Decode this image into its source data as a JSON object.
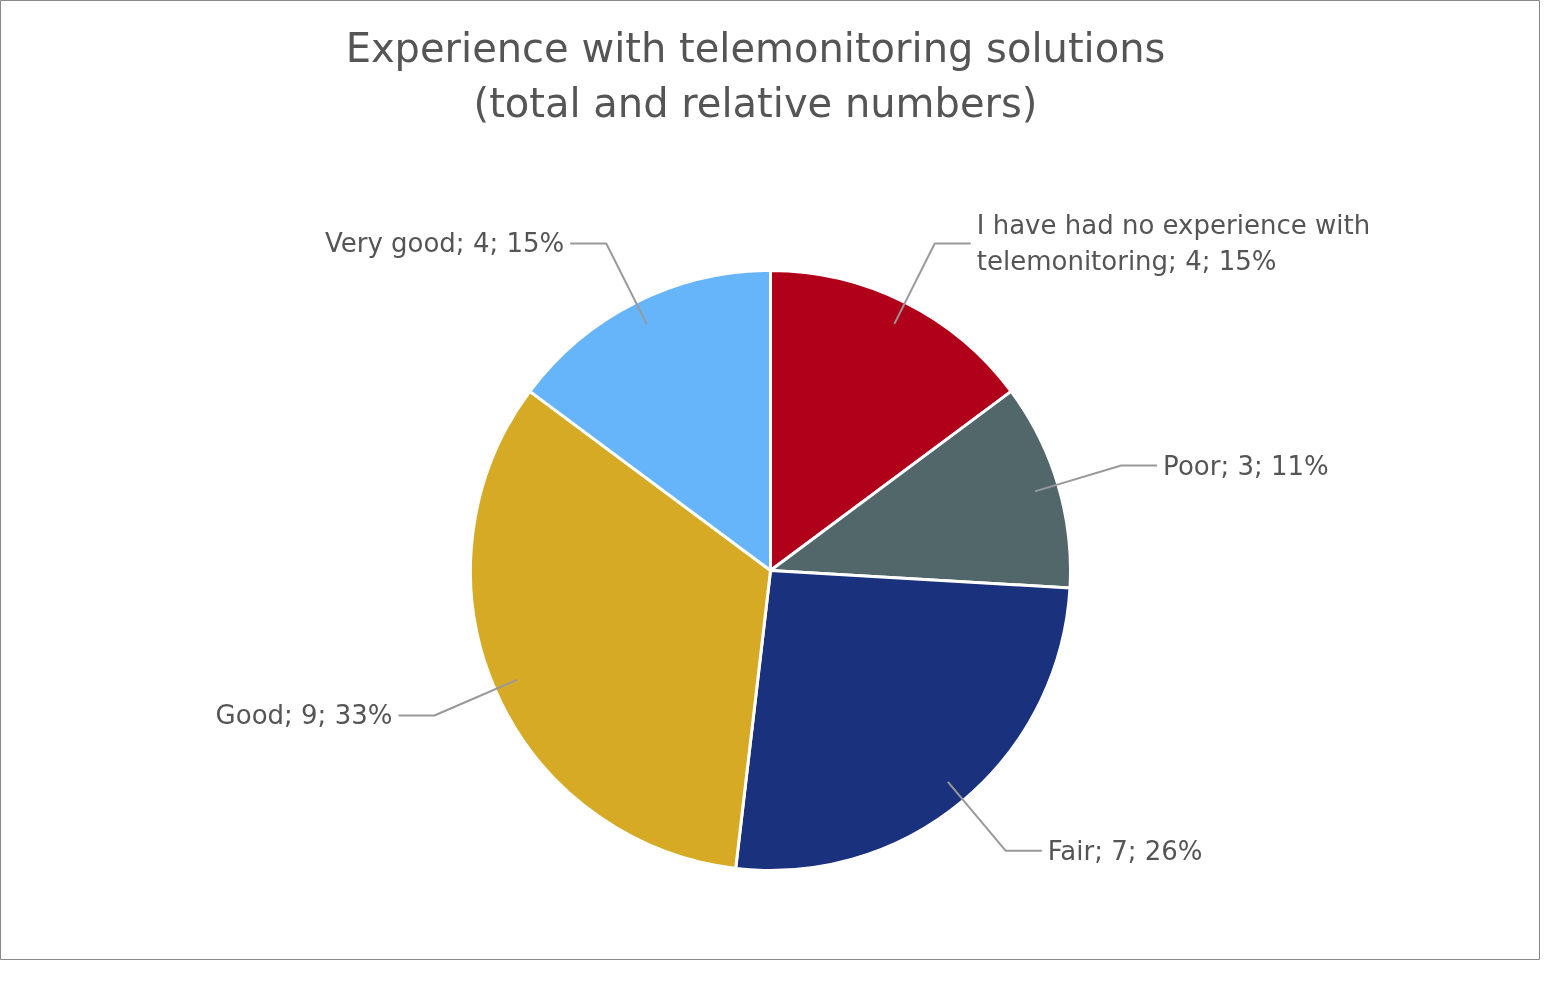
{
  "chart_data": {
    "type": "pie",
    "title": "Experience with telemonitoring solutions\n(total and relative numbers)",
    "categories": [
      "I have had no experience with telemonitoring",
      "Poor",
      "Fair",
      "Good",
      "Very good"
    ],
    "values": [
      4,
      3,
      7,
      9,
      4
    ],
    "colors": [
      "#b0001a",
      "#52676a",
      "#1a317d",
      "#d6aa24",
      "#66b5fa"
    ],
    "value_labels": [
      "4; 15%",
      "3; 11%",
      "7; 26%",
      "9; 33%",
      "4; 15%"
    ]
  }
}
